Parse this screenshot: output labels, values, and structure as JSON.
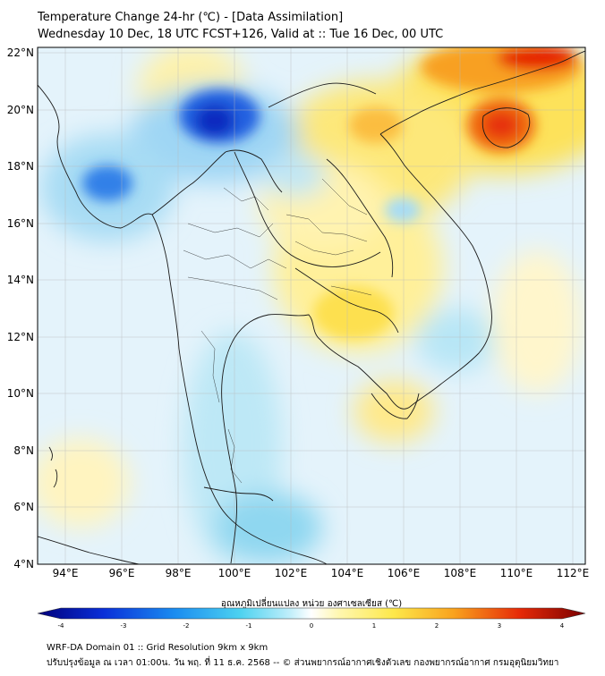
{
  "title_line1": "Temperature Change 24-hr (℃) - [Data Assimilation]",
  "title_line2": "Wednesday 10 Dec, 18 UTC FCST+126, Valid at :: Tue 16 Dec, 00 UTC",
  "axes": {
    "lat_labels": [
      "22°N",
      "20°N",
      "18°N",
      "16°N",
      "14°N",
      "12°N",
      "10°N",
      "8°N",
      "6°N",
      "4°N"
    ],
    "lon_labels": [
      "94°E",
      "96°E",
      "98°E",
      "100°E",
      "102°E",
      "104°E",
      "106°E",
      "108°E",
      "110°E",
      "112°E"
    ],
    "lat_range": [
      4,
      22
    ],
    "lon_range": [
      93,
      112.5
    ]
  },
  "colorbar": {
    "label": "อุณหภูมิเปลี่ยนแปลง หน่วย องศาเซลเซียส (℃)",
    "ticks": [
      "-4",
      "-3",
      "-2",
      "-1",
      "0",
      "1",
      "2",
      "3",
      "4"
    ],
    "min": -4,
    "max": 4
  },
  "footer_line1": "WRF-DA Domain 01 :: Grid Resolution 9km x 9km",
  "footer_line2": "ปรับปรุงข้อมูล ณ เวลา 01:00น. วัน พฤ. ที่ 11 ธ.ค. 2568 -- © ส่วนพยากรณ์อากาศเชิงตัวเลข กองพยากรณ์อากาศ กรมอุตุนิยมวิทยา",
  "colors": {
    "max_warm": "#e60000",
    "max_cold": "#0020b0",
    "background_field": "#e4f3fb"
  }
}
